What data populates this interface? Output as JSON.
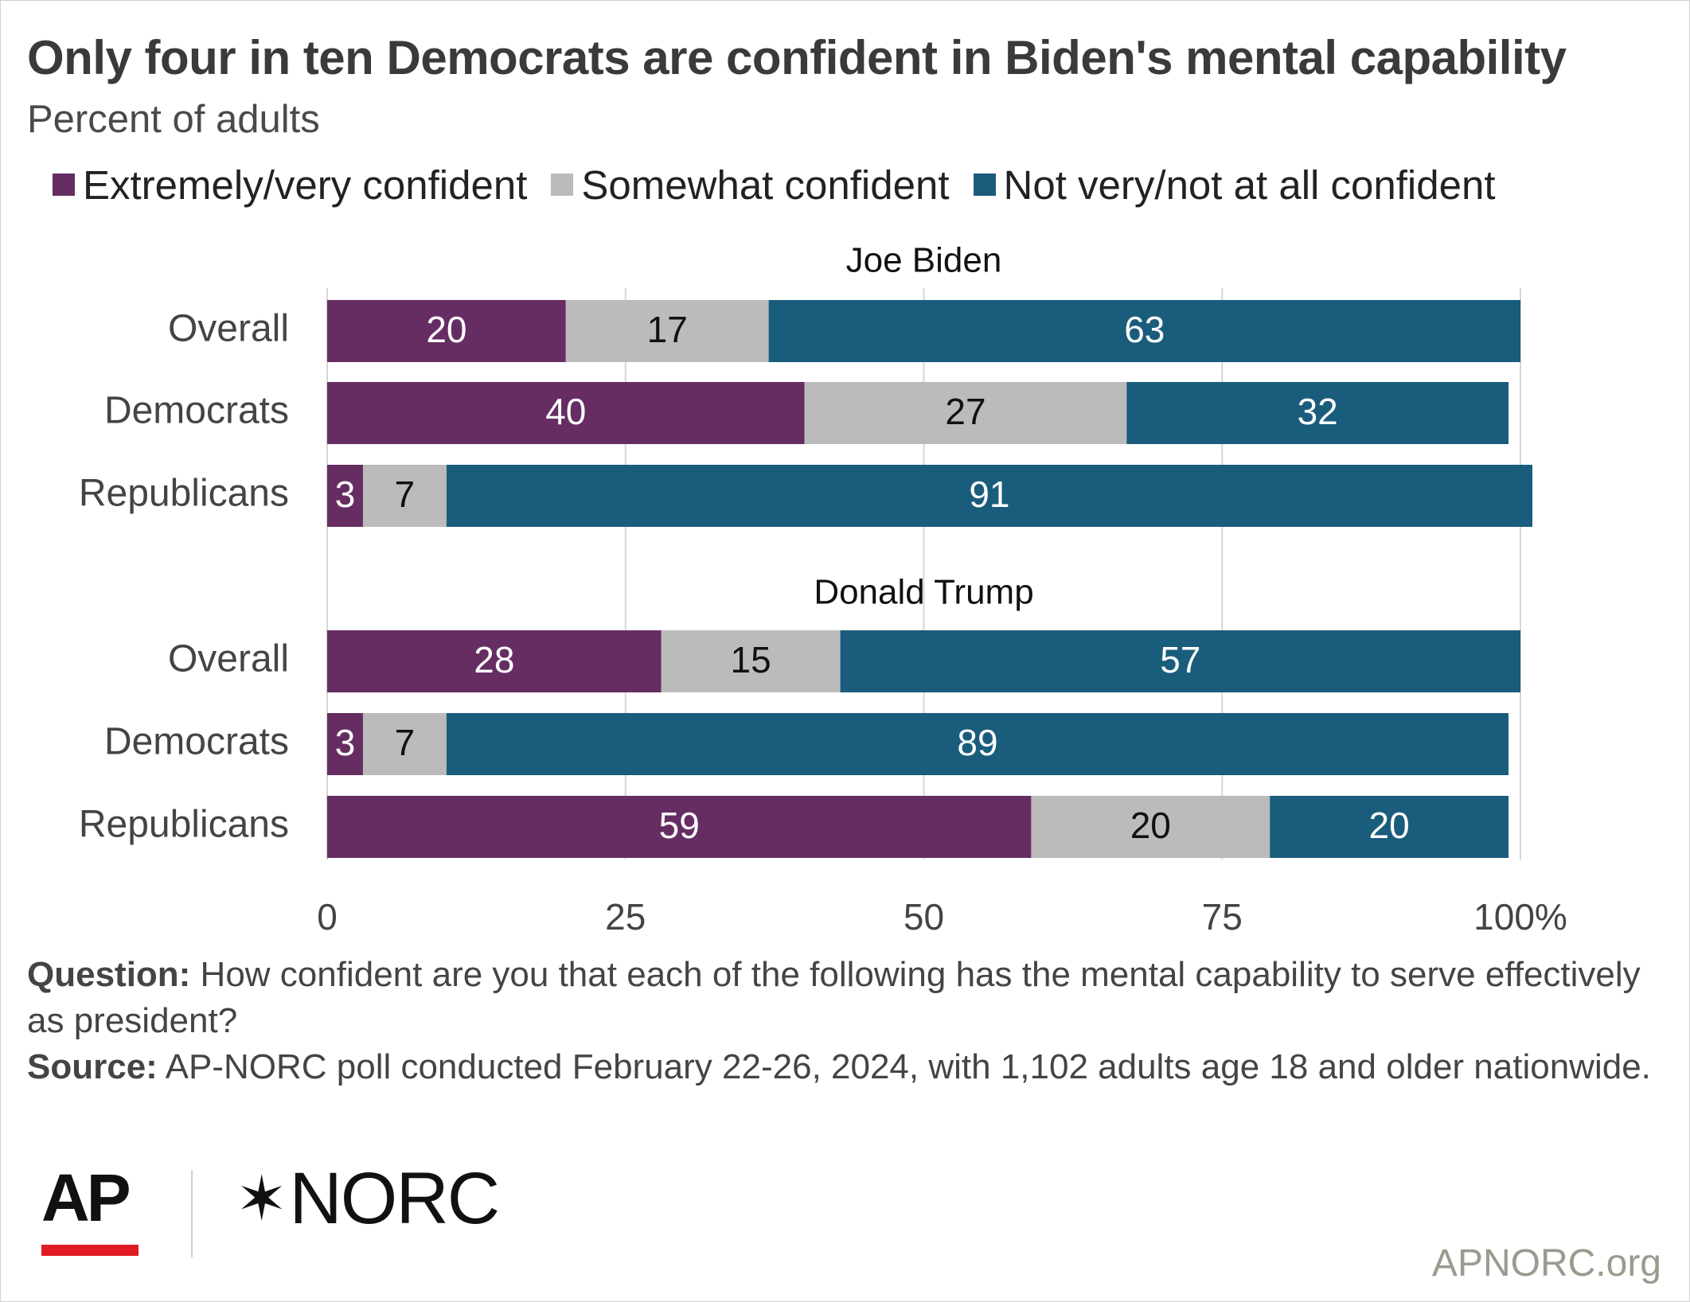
{
  "title": "Only four in ten Democrats are confident in Biden's mental capability",
  "subtitle": "Percent of adults",
  "legend": [
    {
      "label": "Extremely/very confident",
      "color": "#662d63"
    },
    {
      "label": "Somewhat confident",
      "color": "#bbbbbb"
    },
    {
      "label": "Not very/not at all confident",
      "color": "#1a5c7c"
    }
  ],
  "chart_data": {
    "type": "bar",
    "orientation": "horizontal",
    "stacked": true,
    "groups": [
      {
        "name": "Joe Biden",
        "categories": [
          "Overall",
          "Democrats",
          "Republicans"
        ],
        "series": [
          {
            "name": "Extremely/very confident",
            "values": [
              20,
              40,
              3
            ]
          },
          {
            "name": "Somewhat confident",
            "values": [
              17,
              27,
              7
            ]
          },
          {
            "name": "Not very/not at all confident",
            "values": [
              63,
              32,
              91
            ]
          }
        ]
      },
      {
        "name": "Donald Trump",
        "categories": [
          "Overall",
          "Democrats",
          "Republicans"
        ],
        "series": [
          {
            "name": "Extremely/very confident",
            "values": [
              28,
              3,
              59
            ]
          },
          {
            "name": "Somewhat confident",
            "values": [
              15,
              7,
              20
            ]
          },
          {
            "name": "Not very/not at all confident",
            "values": [
              57,
              89,
              20
            ]
          }
        ]
      }
    ],
    "xlim": [
      0,
      100
    ],
    "xticks": [
      0,
      25,
      50,
      75,
      100
    ],
    "xtick_labels": [
      "0",
      "25",
      "50",
      "75",
      "100%"
    ],
    "grid": true,
    "label_colors": [
      "#ffffff",
      "#111111",
      "#ffffff"
    ]
  },
  "footnote": {
    "question_label": "Question:",
    "question_text": " How confident are you that each of the following has the mental capability to serve effectively as president?",
    "source_label": "Source:",
    "source_text": " AP-NORC poll conducted February 22-26, 2024, with 1,102 adults age 18 and older nationwide."
  },
  "logos": {
    "ap": "AP",
    "norc_star": "✶",
    "norc": "NORC"
  },
  "site": "APNORC.org"
}
